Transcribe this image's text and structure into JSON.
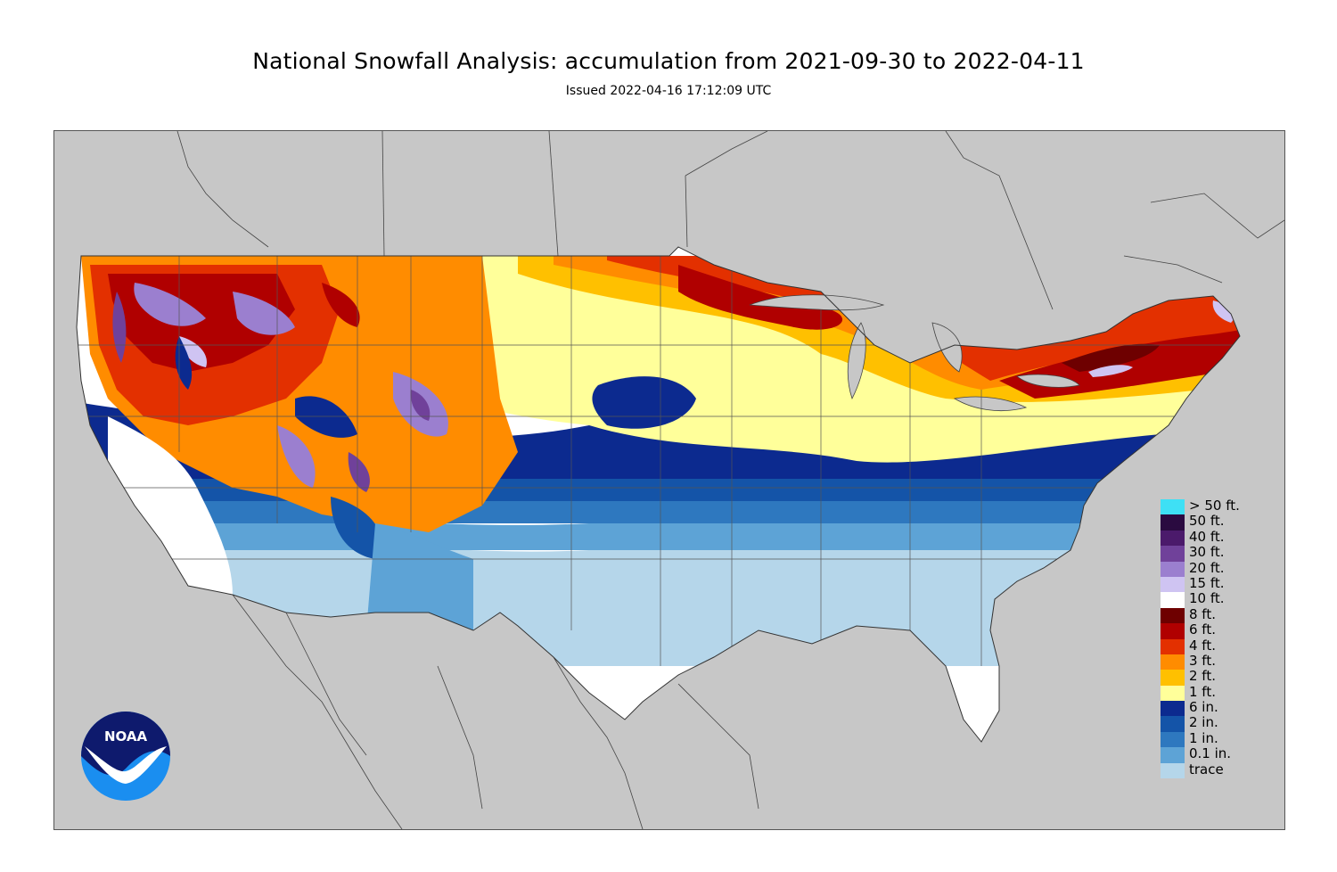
{
  "title": "National Snowfall Analysis: accumulation from 2021-09-30 to 2022-04-11",
  "subtitle": "Issued 2022-04-16 17:12:09 UTC",
  "map": {
    "background_color": "#c7c7c7",
    "border_color": "#555555",
    "region": "Contiguous United States"
  },
  "legend": [
    {
      "label": "> 50 ft.",
      "color": "#3ee0f5"
    },
    {
      "label": "50 ft.",
      "color": "#2a0a40"
    },
    {
      "label": "40 ft.",
      "color": "#4b1a6b"
    },
    {
      "label": "30 ft.",
      "color": "#70419a"
    },
    {
      "label": "20 ft.",
      "color": "#9b7fcf"
    },
    {
      "label": "15 ft.",
      "color": "#cfc4f2"
    },
    {
      "label": "10 ft.",
      "color": "#ffffff"
    },
    {
      "label": "8 ft.",
      "color": "#6e0000"
    },
    {
      "label": "6 ft.",
      "color": "#b00000"
    },
    {
      "label": "4 ft.",
      "color": "#e33000"
    },
    {
      "label": "3 ft.",
      "color": "#ff8c00"
    },
    {
      "label": "2 ft.",
      "color": "#ffc000"
    },
    {
      "label": "1 ft.",
      "color": "#ffff9a"
    },
    {
      "label": "6 in.",
      "color": "#0c2a8f"
    },
    {
      "label": "2 in.",
      "color": "#1454a8"
    },
    {
      "label": "1 in.",
      "color": "#2e78bf"
    },
    {
      "label": "0.1 in.",
      "color": "#5da3d6"
    },
    {
      "label": "trace",
      "color": "#b5d6ea"
    }
  ],
  "logo": {
    "text": "NOAA",
    "icon": "noaa-logo",
    "colors": [
      "#0e1a6d",
      "#1a8ef0",
      "#ffffff"
    ]
  }
}
